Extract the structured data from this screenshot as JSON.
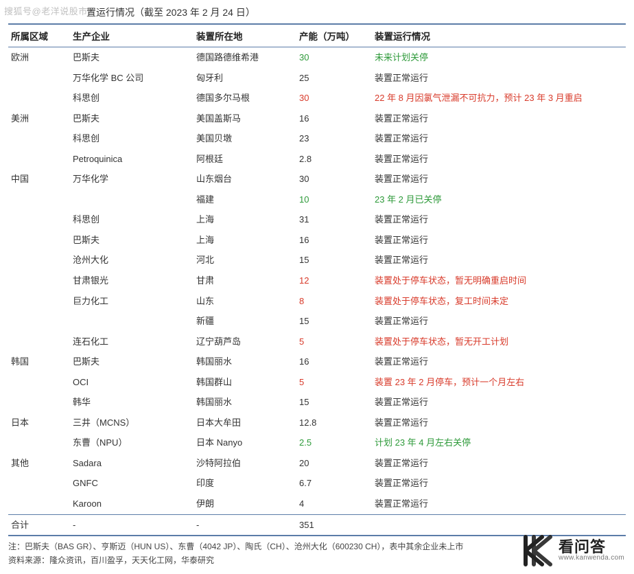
{
  "watermark_tl": "搜狐号@老洋说股市",
  "title": "置运行情况（截至 2023 年 2 月 24 日）",
  "columns": [
    "所属区域",
    "生产企业",
    "装置所在地",
    "产能（万吨）",
    "装置运行情况"
  ],
  "color_map": {
    "green": "#2e9a3a",
    "red": "#d83a2a",
    "normal": "#333333"
  },
  "rule_color": "#5b7ca8",
  "rows": [
    {
      "region": "欧洲",
      "company": "巴斯夫",
      "location": "德国路德维希港",
      "capacity": "30",
      "capacity_color": "green",
      "status": "未来计划关停",
      "status_color": "green"
    },
    {
      "region": "",
      "company": "万华化学 BC 公司",
      "location": "匈牙利",
      "capacity": "25",
      "capacity_color": "normal",
      "status": "装置正常运行",
      "status_color": "normal"
    },
    {
      "region": "",
      "company": "科思创",
      "location": "德国多尔马根",
      "capacity": "30",
      "capacity_color": "red",
      "status": "22 年 8 月因氯气泄漏不可抗力，预计 23 年 3 月重启",
      "status_color": "red"
    },
    {
      "region": "美洲",
      "company": "巴斯夫",
      "location": "美国盖斯马",
      "capacity": "16",
      "capacity_color": "normal",
      "status": "装置正常运行",
      "status_color": "normal"
    },
    {
      "region": "",
      "company": "科思创",
      "location": "美国贝墩",
      "capacity": "23",
      "capacity_color": "normal",
      "status": "装置正常运行",
      "status_color": "normal"
    },
    {
      "region": "",
      "company": "Petroquinica",
      "location": "阿根廷",
      "capacity": "2.8",
      "capacity_color": "normal",
      "status": "装置正常运行",
      "status_color": "normal"
    },
    {
      "region": "中国",
      "company": "万华化学",
      "location": "山东烟台",
      "capacity": "30",
      "capacity_color": "normal",
      "status": "装置正常运行",
      "status_color": "normal"
    },
    {
      "region": "",
      "company": "",
      "location": "福建",
      "capacity": "10",
      "capacity_color": "green",
      "status": "23 年 2 月已关停",
      "status_color": "green"
    },
    {
      "region": "",
      "company": "科思创",
      "location": "上海",
      "capacity": "31",
      "capacity_color": "normal",
      "status": "装置正常运行",
      "status_color": "normal"
    },
    {
      "region": "",
      "company": "巴斯夫",
      "location": "上海",
      "capacity": "16",
      "capacity_color": "normal",
      "status": "装置正常运行",
      "status_color": "normal"
    },
    {
      "region": "",
      "company": "沧州大化",
      "location": "河北",
      "capacity": "15",
      "capacity_color": "normal",
      "status": "装置正常运行",
      "status_color": "normal"
    },
    {
      "region": "",
      "company": "甘肃银光",
      "location": "甘肃",
      "capacity": "12",
      "capacity_color": "red",
      "status": "装置处于停车状态，暂无明确重启时间",
      "status_color": "red"
    },
    {
      "region": "",
      "company": "巨力化工",
      "location": "山东",
      "capacity": "8",
      "capacity_color": "red",
      "status": "装置处于停车状态，复工时间未定",
      "status_color": "red"
    },
    {
      "region": "",
      "company": "",
      "location": "新疆",
      "capacity": "15",
      "capacity_color": "normal",
      "status": "装置正常运行",
      "status_color": "normal"
    },
    {
      "region": "",
      "company": "连石化工",
      "location": "辽宁葫芦岛",
      "capacity": "5",
      "capacity_color": "red",
      "status": "装置处于停车状态，暂无开工计划",
      "status_color": "red"
    },
    {
      "region": "韩国",
      "company": "巴斯夫",
      "location": "韩国丽水",
      "capacity": "16",
      "capacity_color": "normal",
      "status": "装置正常运行",
      "status_color": "normal"
    },
    {
      "region": "",
      "company": "OCI",
      "location": "韩国群山",
      "capacity": "5",
      "capacity_color": "red",
      "status": "装置 23 年 2 月停车，预计一个月左右",
      "status_color": "red"
    },
    {
      "region": "",
      "company": "韩华",
      "location": "韩国丽水",
      "capacity": "15",
      "capacity_color": "normal",
      "status": "装置正常运行",
      "status_color": "normal"
    },
    {
      "region": "日本",
      "company": "三井（MCNS）",
      "location": "日本大牟田",
      "capacity": "12.8",
      "capacity_color": "normal",
      "status": "装置正常运行",
      "status_color": "normal"
    },
    {
      "region": "",
      "company": "东曹（NPU）",
      "location": "日本 Nanyo",
      "capacity": "2.5",
      "capacity_color": "green",
      "status": "计划 23 年 4 月左右关停",
      "status_color": "green"
    },
    {
      "region": "其他",
      "company": "Sadara",
      "location": "沙特阿拉伯",
      "capacity": "20",
      "capacity_color": "normal",
      "status": "装置正常运行",
      "status_color": "normal"
    },
    {
      "region": "",
      "company": "GNFC",
      "location": "印度",
      "capacity": "6.7",
      "capacity_color": "normal",
      "status": "装置正常运行",
      "status_color": "normal"
    },
    {
      "region": "",
      "company": "Karoon",
      "location": "伊朗",
      "capacity": "4",
      "capacity_color": "normal",
      "status": "装置正常运行",
      "status_color": "normal"
    }
  ],
  "total": {
    "region": "合计",
    "company": "-",
    "location": "-",
    "capacity": "351",
    "status": ""
  },
  "note": "注：巴斯夫（BAS GR）、亨斯迈（HUN US）、东曹（4042 JP）、陶氏（CH）、沧州大化（600230 CH），表中其余企业未上市",
  "source": "资料来源：隆众资讯，百川盈孚，天天化工网，华泰研究",
  "logo": {
    "cn": "看问答",
    "en": "www.kanwenda.com"
  }
}
